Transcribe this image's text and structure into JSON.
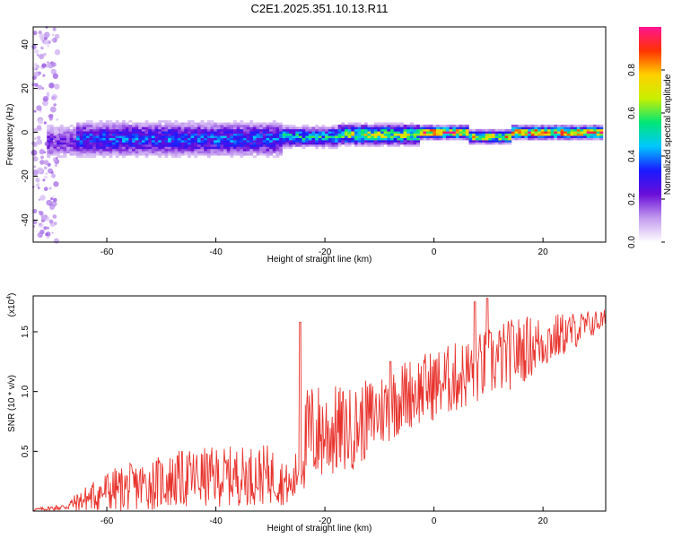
{
  "title": "C2E1.2025.351.10.13.R11",
  "chart_data": [
    {
      "type": "heatmap",
      "xlabel": "Height of straight line (km)",
      "ylabel": "Frequency (Hz)",
      "xlim": [
        -73.5,
        31.5
      ],
      "ylim": [
        -50,
        48
      ],
      "xticks": [
        -60,
        -40,
        -20,
        0,
        20
      ],
      "yticks": [
        -40,
        -20,
        0,
        20,
        40
      ],
      "colorbar": {
        "label": "Normalized spectral amplitude",
        "range": [
          0,
          1
        ],
        "ticks": [
          0.0,
          0.2,
          0.4,
          0.6,
          0.8
        ],
        "colors": [
          "#ffffff",
          "#c39bef",
          "#6a0dd8",
          "#1a1aff",
          "#00c8ff",
          "#00e676",
          "#c8f000",
          "#ffd000",
          "#ff3300",
          "#ff1493"
        ]
      },
      "bands": [
        {
          "x": [
            -71,
            -66
          ],
          "center_hz": -4,
          "amplitude": 0.25
        },
        {
          "x": [
            -66,
            -28
          ],
          "center_hz": -3,
          "amplitude": 0.4
        },
        {
          "x": [
            -28,
            -18
          ],
          "center_hz": -2,
          "amplitude": 0.55
        },
        {
          "x": [
            -18,
            -3
          ],
          "center_hz": -1,
          "amplitude": 0.7
        },
        {
          "x": [
            -3,
            6
          ],
          "center_hz": 0,
          "amplitude": 0.95
        },
        {
          "x": [
            6,
            14
          ],
          "center_hz": -2,
          "amplitude": 0.8
        },
        {
          "x": [
            14,
            31
          ],
          "center_hz": 0,
          "amplitude": 0.95
        }
      ]
    },
    {
      "type": "line",
      "xlabel": "Height of straight line (km)",
      "ylabel": "SNR (10 * v/v)",
      "y_multiplier": "(x10",
      "y_multiplier_exp": "4",
      "xlim": [
        -73.5,
        31.5
      ],
      "ylim": [
        0,
        1.8
      ],
      "xticks": [
        -60,
        -40,
        -20,
        0,
        20
      ],
      "yticks": [
        0.5,
        1.0,
        1.5
      ],
      "ytick_labels": [
        "0.5",
        "1.0",
        "1.5"
      ],
      "color": "#e8332d",
      "trend": [
        {
          "x": -73.5,
          "base": 0.01,
          "amp": 0.01
        },
        {
          "x": -68,
          "base": 0.03,
          "amp": 0.03
        },
        {
          "x": -60,
          "base": 0.15,
          "amp": 0.18
        },
        {
          "x": -45,
          "base": 0.25,
          "amp": 0.25
        },
        {
          "x": -30,
          "base": 0.28,
          "amp": 0.25
        },
        {
          "x": -26,
          "base": 0.18,
          "amp": 0.15
        },
        {
          "x": -23,
          "base": 0.6,
          "amp": 0.45
        },
        {
          "x": -15,
          "base": 0.65,
          "amp": 0.35
        },
        {
          "x": -5,
          "base": 0.95,
          "amp": 0.3
        },
        {
          "x": 5,
          "base": 1.1,
          "amp": 0.3
        },
        {
          "x": 15,
          "base": 1.3,
          "amp": 0.3
        },
        {
          "x": 31.5,
          "base": 1.6,
          "amp": 0.08
        }
      ],
      "peaks": [
        {
          "x": -24.5,
          "y": 1.58
        },
        {
          "x": 7.5,
          "y": 1.75
        },
        {
          "x": 9.8,
          "y": 1.78
        },
        {
          "x": 14.5,
          "y": 1.55
        },
        {
          "x": -8,
          "y": 1.25
        }
      ]
    }
  ]
}
